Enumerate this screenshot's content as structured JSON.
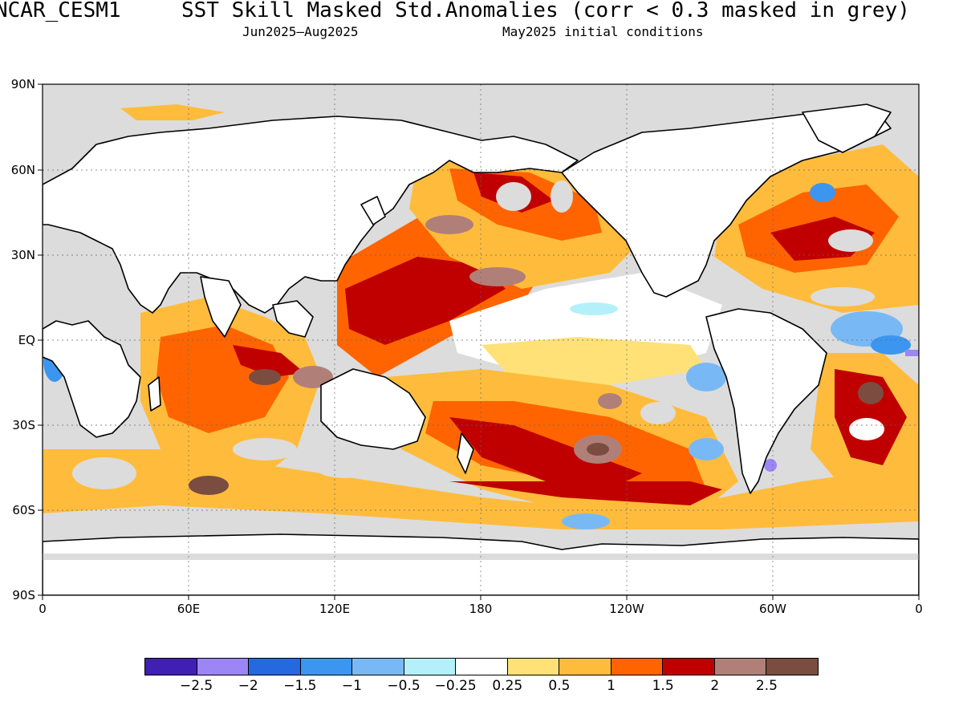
{
  "header": {
    "model": "NCAR_CESM1",
    "title": "SST Skill Masked Std.Anomalies (corr < 0.3 masked in grey)",
    "period": "Jun2025–Aug2025",
    "init": "May2025 initial conditions"
  },
  "map": {
    "lat_labels": [
      "90N",
      "60N",
      "30N",
      "EQ",
      "30S",
      "60S",
      "90S"
    ],
    "lon_labels": [
      "0",
      "60E",
      "120E",
      "180",
      "120W",
      "60W",
      "0"
    ],
    "mask_color": "#dcdcdc",
    "land_color": "#ffffff"
  },
  "colorbar": {
    "colors": [
      "#3f1fb4",
      "#9c85f5",
      "#2469e0",
      "#3c96f0",
      "#78b9f5",
      "#b4f0fa",
      "#ffffff",
      "#ffe178",
      "#ffbc3c",
      "#ff6400",
      "#c00000",
      "#b08078",
      "#7a4d40"
    ],
    "ticks": [
      "−2.5",
      "−2",
      "−1.5",
      "−1",
      "−0.5",
      "−0.25",
      "0.25",
      "0.5",
      "1",
      "1.5",
      "2",
      "2.5"
    ]
  }
}
